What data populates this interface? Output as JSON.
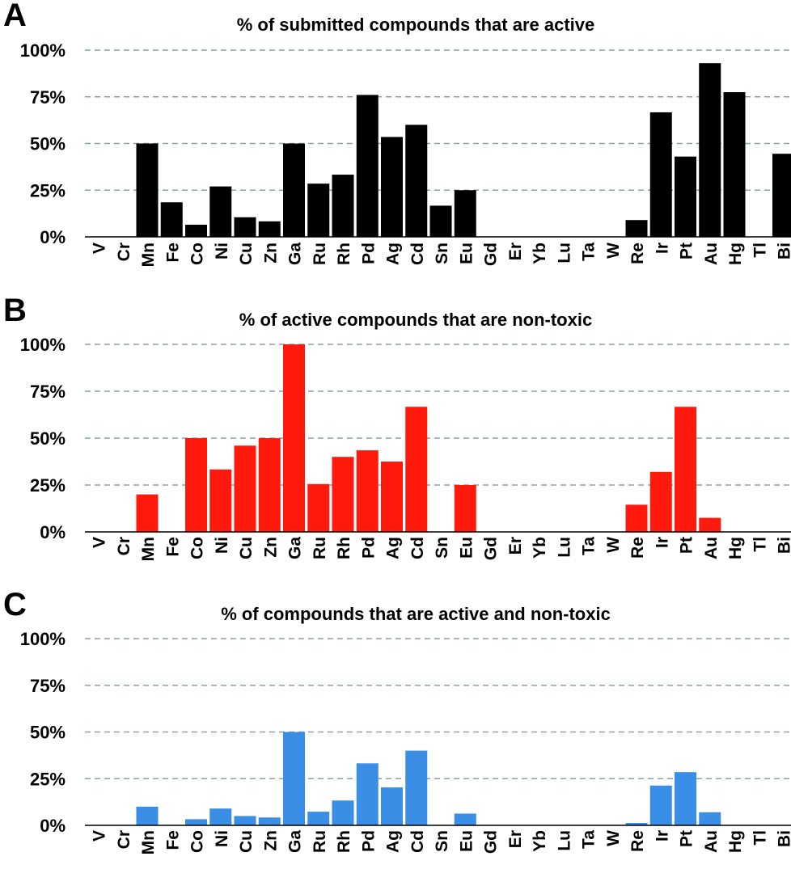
{
  "chart_data": [
    {
      "type": "bar",
      "panel": "A",
      "title": "% of submitted compounds that are active",
      "categories": [
        "V",
        "Cr",
        "Mn",
        "Fe",
        "Co",
        "Ni",
        "Cu",
        "Zn",
        "Ga",
        "Ru",
        "Rh",
        "Pd",
        "Ag",
        "Cd",
        "Sn",
        "Eu",
        "Gd",
        "Er",
        "Yb",
        "Lu",
        "Ta",
        "W",
        "Re",
        "Ir",
        "Pt",
        "Au",
        "Hg",
        "Tl",
        "Bi"
      ],
      "values": [
        0,
        0,
        50,
        18.5,
        6.5,
        27,
        10.5,
        8.3,
        50,
        28.5,
        33.3,
        76,
        53.5,
        60,
        16.7,
        25,
        0,
        0,
        0,
        0,
        0,
        0,
        9,
        66.7,
        43,
        93,
        77.5,
        0,
        44.5
      ],
      "color": "#000000",
      "ylim": [
        0,
        100
      ],
      "yticks": [
        "0%",
        "25%",
        "50%",
        "75%",
        "100%"
      ],
      "grid": true
    },
    {
      "type": "bar",
      "panel": "B",
      "title": "% of active compounds that are non-toxic",
      "categories": [
        "V",
        "Cr",
        "Mn",
        "Fe",
        "Co",
        "Ni",
        "Cu",
        "Zn",
        "Ga",
        "Ru",
        "Rh",
        "Pd",
        "Ag",
        "Cd",
        "Sn",
        "Eu",
        "Gd",
        "Er",
        "Yb",
        "Lu",
        "Ta",
        "W",
        "Re",
        "Ir",
        "Pt",
        "Au",
        "Hg",
        "Tl",
        "Bi"
      ],
      "values": [
        0,
        0,
        20,
        0,
        50,
        33.3,
        46,
        50,
        100,
        25.5,
        40,
        43.5,
        37.5,
        66.7,
        0,
        25,
        0,
        0,
        0,
        0,
        0,
        0,
        14.5,
        32,
        66.7,
        7.5,
        0,
        0,
        0
      ],
      "color": "#ff1a0d",
      "ylim": [
        0,
        100
      ],
      "yticks": [
        "0%",
        "25%",
        "50%",
        "75%",
        "100%"
      ],
      "grid": true
    },
    {
      "type": "bar",
      "panel": "C",
      "title": "% of compounds that are active and non-toxic",
      "categories": [
        "V",
        "Cr",
        "Mn",
        "Fe",
        "Co",
        "Ni",
        "Cu",
        "Zn",
        "Ga",
        "Ru",
        "Rh",
        "Pd",
        "Ag",
        "Cd",
        "Sn",
        "Eu",
        "Gd",
        "Er",
        "Yb",
        "Lu",
        "Ta",
        "W",
        "Re",
        "Ir",
        "Pt",
        "Au",
        "Hg",
        "Tl",
        "Bi"
      ],
      "values": [
        0,
        0,
        10,
        0,
        3.3,
        9,
        5,
        4.2,
        50,
        7.3,
        13.3,
        33.2,
        20.3,
        40,
        0,
        6.3,
        0,
        0,
        0,
        0,
        0,
        0,
        1.3,
        21.3,
        28.5,
        7,
        0,
        0,
        0
      ],
      "color": "#3a8ee6",
      "ylim": [
        0,
        100
      ],
      "yticks": [
        "0%",
        "25%",
        "50%",
        "75%",
        "100%"
      ],
      "grid": true
    }
  ]
}
